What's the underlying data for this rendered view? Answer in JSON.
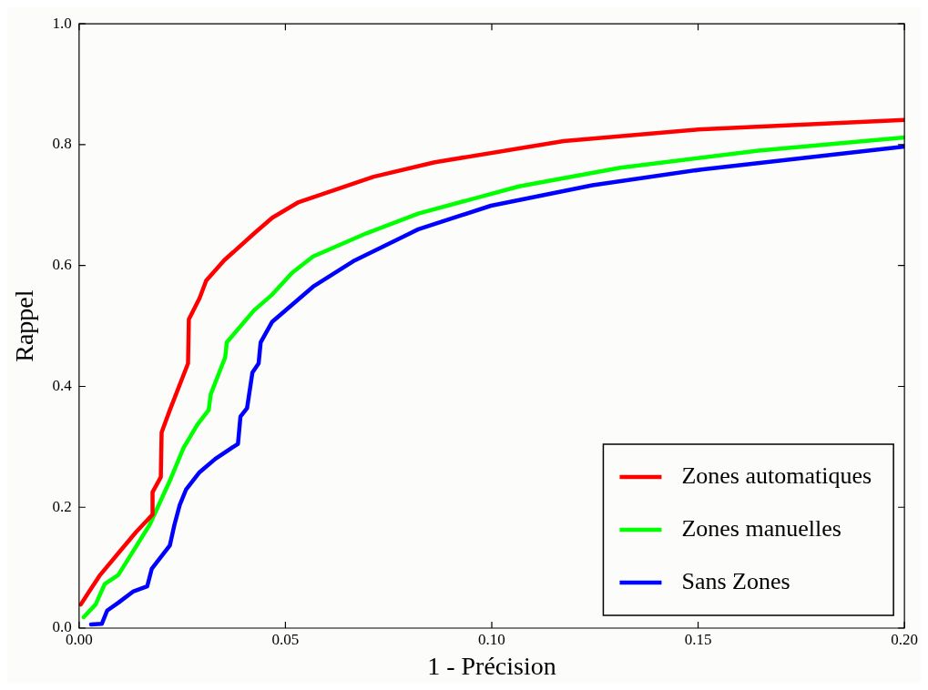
{
  "chart_data": {
    "type": "line",
    "xlabel": "1 - Précision",
    "ylabel": "Rappel",
    "xlim": [
      0,
      0.2
    ],
    "xticks": [
      {
        "value": 0,
        "label": "0.00"
      },
      {
        "value": 0.05,
        "label": "0.05"
      },
      {
        "value": 0.1,
        "label": "0.10"
      },
      {
        "value": 0.15,
        "label": "0.15"
      },
      {
        "value": 0.2,
        "label": "0.20"
      }
    ],
    "ylim": [
      0,
      1
    ],
    "yticks": [
      {
        "value": 0,
        "label": "0.0"
      },
      {
        "value": 0.2,
        "label": "0.2"
      },
      {
        "value": 0.4,
        "label": "0.4"
      },
      {
        "value": 0.6,
        "label": "0.6"
      },
      {
        "value": 0.8,
        "label": "0.8"
      },
      {
        "value": 1,
        "label": "1.0"
      }
    ],
    "grid": false,
    "legend": "bottom right",
    "marker": "none",
    "line_style": "solid",
    "series": [
      {
        "name": "Zones automatiques",
        "color": "#ff0000",
        "x": [
          0.0004,
          0.0022,
          0.0051,
          0.0095,
          0.0138,
          0.0178,
          0.0178,
          0.0198,
          0.02,
          0.022,
          0.0264,
          0.0266,
          0.0292,
          0.0308,
          0.0352,
          0.0424,
          0.0468,
          0.0532,
          0.0714,
          0.0862,
          0.1174,
          0.1499,
          0.2
        ],
        "values": [
          0.039,
          0.058,
          0.088,
          0.124,
          0.159,
          0.188,
          0.225,
          0.25,
          0.324,
          0.361,
          0.438,
          0.511,
          0.546,
          0.575,
          0.609,
          0.653,
          0.679,
          0.705,
          0.747,
          0.771,
          0.806,
          0.825,
          0.841
        ]
      },
      {
        "name": "Zones manuelles",
        "color": "#00ff00",
        "x": [
          0.0011,
          0.004,
          0.0062,
          0.0095,
          0.0127,
          0.0171,
          0.022,
          0.0253,
          0.0286,
          0.0314,
          0.0319,
          0.0343,
          0.0354,
          0.0358,
          0.0424,
          0.0468,
          0.0516,
          0.0567,
          0.0695,
          0.0822,
          0.1066,
          0.1312,
          0.1646,
          0.2
        ],
        "values": [
          0.018,
          0.039,
          0.073,
          0.088,
          0.123,
          0.171,
          0.244,
          0.298,
          0.336,
          0.361,
          0.387,
          0.429,
          0.448,
          0.473,
          0.526,
          0.552,
          0.588,
          0.615,
          0.653,
          0.686,
          0.731,
          0.762,
          0.79,
          0.812
        ]
      },
      {
        "name": "Sans Zones",
        "color": "#0000ff",
        "x": [
          0.0029,
          0.0055,
          0.0068,
          0.0095,
          0.0132,
          0.0165,
          0.0176,
          0.022,
          0.0231,
          0.0244,
          0.0259,
          0.0292,
          0.033,
          0.0385,
          0.0391,
          0.0407,
          0.042,
          0.0435,
          0.044,
          0.0468,
          0.0567,
          0.0664,
          0.0822,
          0.0998,
          0.1244,
          0.1508,
          0.2
        ],
        "values": [
          0.006,
          0.007,
          0.029,
          0.042,
          0.061,
          0.069,
          0.098,
          0.137,
          0.171,
          0.204,
          0.229,
          0.258,
          0.28,
          0.305,
          0.35,
          0.364,
          0.423,
          0.438,
          0.473,
          0.507,
          0.565,
          0.607,
          0.66,
          0.699,
          0.733,
          0.759,
          0.797
        ]
      }
    ]
  }
}
